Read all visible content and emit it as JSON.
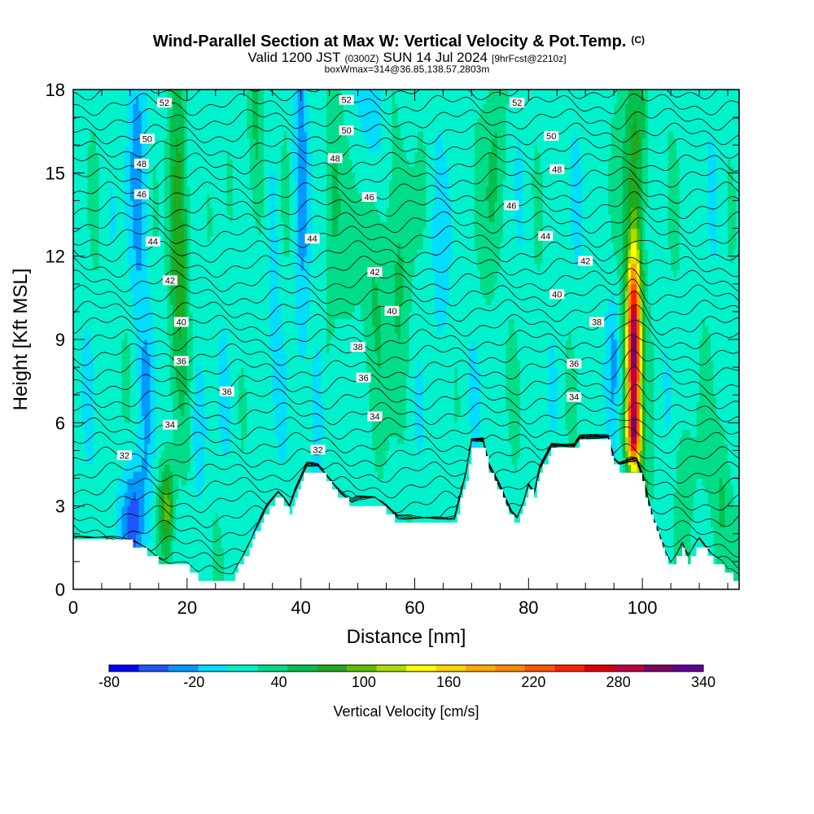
{
  "chart_data": {
    "type": "heatmap",
    "title": "Wind-Parallel Section at Max W: Vertical Velocity & Pot.Temp.",
    "title_mark": "(C)",
    "subtitle_parts": [
      "Valid 1200 JST",
      "(0300Z)",
      "SUN 14 Jul 2024",
      "[9hrFcst@2210z]"
    ],
    "subtitle2": "boxWmax=314@36.85,138.57,2803m",
    "xlabel": "Distance [nm]",
    "ylabel": "Height [Kft MSL]",
    "xlim": [
      0,
      117
    ],
    "ylim": [
      0,
      18
    ],
    "x_ticks": [
      0,
      20,
      40,
      60,
      80,
      100
    ],
    "x_tick_labels": [
      "0",
      "20",
      "40",
      "60",
      "80",
      "100"
    ],
    "y_ticks": [
      0,
      3,
      6,
      9,
      12,
      15,
      18
    ],
    "y_tick_labels": [
      "0",
      "3",
      "6",
      "9",
      "12",
      "15",
      "18"
    ],
    "colorbar": {
      "label": "Vertical Velocity [cm/s]",
      "tick_values": [
        -80,
        -20,
        40,
        100,
        160,
        220,
        280,
        340
      ],
      "tick_labels": [
        "-80",
        "-20",
        "40",
        "100",
        "160",
        "220",
        "280",
        "340"
      ],
      "colors": [
        "#0000ff",
        "#1f55ff",
        "#0099ff",
        "#00ddff",
        "#00f2cc",
        "#00dd88",
        "#00c050",
        "#1faa1f",
        "#5cc000",
        "#aadd00",
        "#ffff00",
        "#ffd700",
        "#ffaa00",
        "#ff8800",
        "#ff5500",
        "#ff2200",
        "#e00000",
        "#bb0044",
        "#800066",
        "#600099"
      ]
    },
    "terrain": [
      [
        0,
        1.65
      ],
      [
        10,
        1.65
      ],
      [
        13,
        1.3
      ],
      [
        15,
        1.0
      ],
      [
        17,
        0.75
      ],
      [
        20,
        0.75
      ],
      [
        22,
        0.4
      ],
      [
        28,
        0.4
      ],
      [
        30,
        1.1
      ],
      [
        32,
        2.0
      ],
      [
        34,
        2.8
      ],
      [
        36,
        3.3
      ],
      [
        37,
        3.1
      ],
      [
        38,
        2.8
      ],
      [
        39,
        3.4
      ],
      [
        41,
        4.3
      ],
      [
        43,
        4.3
      ],
      [
        45,
        3.8
      ],
      [
        47,
        3.3
      ],
      [
        49,
        3.0
      ],
      [
        50,
        3.1
      ],
      [
        53,
        3.1
      ],
      [
        55,
        2.8
      ],
      [
        57,
        2.4
      ],
      [
        62,
        2.4
      ],
      [
        66,
        2.4
      ],
      [
        67,
        2.4
      ],
      [
        69,
        4.0
      ],
      [
        70,
        5.2
      ],
      [
        72,
        5.2
      ],
      [
        73,
        4.3
      ],
      [
        75,
        3.5
      ],
      [
        76,
        3.0
      ],
      [
        77,
        2.6
      ],
      [
        78,
        2.4
      ],
      [
        79,
        2.9
      ],
      [
        80,
        3.6
      ],
      [
        81,
        3.3
      ],
      [
        82,
        4.2
      ],
      [
        84,
        5.0
      ],
      [
        88,
        5.0
      ],
      [
        89,
        5.3
      ],
      [
        94,
        5.3
      ],
      [
        95,
        4.5
      ],
      [
        96,
        4.3
      ],
      [
        99,
        4.3
      ],
      [
        100,
        3.8
      ],
      [
        101,
        3.0
      ],
      [
        102,
        2.3
      ],
      [
        103,
        1.8
      ],
      [
        104,
        1.2
      ],
      [
        105,
        0.8
      ],
      [
        106,
        1.1
      ],
      [
        107,
        1.5
      ],
      [
        108,
        1.0
      ],
      [
        110,
        1.6
      ],
      [
        112,
        1.1
      ],
      [
        114,
        0.8
      ],
      [
        115,
        0.5
      ],
      [
        116,
        0.4
      ],
      [
        117,
        0.35
      ]
    ],
    "contour_labels": [
      {
        "x": 16,
        "y": 17.5,
        "text": "52"
      },
      {
        "x": 48,
        "y": 17.6,
        "text": "52"
      },
      {
        "x": 78,
        "y": 17.5,
        "text": "52"
      },
      {
        "x": 13,
        "y": 16.2,
        "text": "50"
      },
      {
        "x": 48,
        "y": 16.5,
        "text": "50"
      },
      {
        "x": 84,
        "y": 16.3,
        "text": "50"
      },
      {
        "x": 12,
        "y": 15.3,
        "text": "48"
      },
      {
        "x": 46,
        "y": 15.5,
        "text": "48"
      },
      {
        "x": 85,
        "y": 15.1,
        "text": "48"
      },
      {
        "x": 12,
        "y": 14.2,
        "text": "46"
      },
      {
        "x": 52,
        "y": 14.1,
        "text": "46"
      },
      {
        "x": 77,
        "y": 13.8,
        "text": "46"
      },
      {
        "x": 14,
        "y": 12.5,
        "text": "44"
      },
      {
        "x": 42,
        "y": 12.6,
        "text": "44"
      },
      {
        "x": 83,
        "y": 12.7,
        "text": "44"
      },
      {
        "x": 17,
        "y": 11.1,
        "text": "42"
      },
      {
        "x": 53,
        "y": 11.4,
        "text": "42"
      },
      {
        "x": 90,
        "y": 11.8,
        "text": "42"
      },
      {
        "x": 19,
        "y": 9.6,
        "text": "40"
      },
      {
        "x": 56,
        "y": 10.0,
        "text": "40"
      },
      {
        "x": 85,
        "y": 10.6,
        "text": "40"
      },
      {
        "x": 19,
        "y": 8.2,
        "text": "36"
      },
      {
        "x": 50,
        "y": 8.7,
        "text": "38"
      },
      {
        "x": 92,
        "y": 9.6,
        "text": "38"
      },
      {
        "x": 27,
        "y": 7.1,
        "text": "36"
      },
      {
        "x": 51,
        "y": 7.6,
        "text": "36"
      },
      {
        "x": 88,
        "y": 8.1,
        "text": "36"
      },
      {
        "x": 17,
        "y": 5.9,
        "text": "34"
      },
      {
        "x": 53,
        "y": 6.2,
        "text": "34"
      },
      {
        "x": 88,
        "y": 6.9,
        "text": "34"
      },
      {
        "x": 9,
        "y": 4.8,
        "text": "32"
      },
      {
        "x": 43,
        "y": 5.0,
        "text": "32"
      }
    ],
    "w_features": [
      {
        "x": 11.5,
        "y": 15,
        "sx": 1.2,
        "sy": 3.5,
        "value": -40
      },
      {
        "x": 10.5,
        "y": 2.5,
        "sx": 1.3,
        "sy": 1.5,
        "value": -70
      },
      {
        "x": 13,
        "y": 7,
        "sx": 1.0,
        "sy": 3.0,
        "value": -25
      },
      {
        "x": 18.5,
        "y": 13,
        "sx": 1.3,
        "sy": 4.0,
        "value": 70
      },
      {
        "x": 16.5,
        "y": 3,
        "sx": 0.9,
        "sy": 1.2,
        "value": 80
      },
      {
        "x": 22,
        "y": 6,
        "sx": 0.8,
        "sy": 1.5,
        "value": -30
      },
      {
        "x": 32,
        "y": 16,
        "sx": 1.2,
        "sy": 2.5,
        "value": 35
      },
      {
        "x": 35,
        "y": 12,
        "sx": 0.8,
        "sy": 3.0,
        "value": -20
      },
      {
        "x": 40,
        "y": 15,
        "sx": 1.0,
        "sy": 4.0,
        "value": -40
      },
      {
        "x": 43,
        "y": 6.5,
        "sx": 0.8,
        "sy": 2.0,
        "value": -45
      },
      {
        "x": 45.5,
        "y": 14,
        "sx": 1.0,
        "sy": 3.5,
        "value": 35
      },
      {
        "x": 52,
        "y": 17,
        "sx": 1.5,
        "sy": 2.0,
        "value": -30
      },
      {
        "x": 54,
        "y": 12,
        "sx": 4.0,
        "sy": 3.0,
        "value": 30
      },
      {
        "x": 57,
        "y": 8,
        "sx": 2.0,
        "sy": 2.5,
        "value": 15
      },
      {
        "x": 64,
        "y": 11,
        "sx": 2.0,
        "sy": 3.0,
        "value": -15
      },
      {
        "x": 74,
        "y": 15,
        "sx": 1.2,
        "sy": 3.0,
        "value": 40
      },
      {
        "x": 98.5,
        "y": 16,
        "sx": 1.5,
        "sy": 2.5,
        "value": 60
      },
      {
        "x": 98.5,
        "y": 8.8,
        "sx": 0.9,
        "sy": 2.6,
        "value": 300
      },
      {
        "x": 98.5,
        "y": 5.6,
        "sx": 0.9,
        "sy": 0.8,
        "value": 150
      },
      {
        "x": 95,
        "y": 8.5,
        "sx": 0.6,
        "sy": 1.5,
        "value": -30
      },
      {
        "x": 100,
        "y": 3,
        "sx": 0.8,
        "sy": 1.2,
        "value": 60
      },
      {
        "x": 108,
        "y": 4,
        "sx": 2.0,
        "sy": 2.0,
        "value": 20
      },
      {
        "x": 114,
        "y": 3,
        "sx": 1.0,
        "sy": 2.0,
        "value": 40
      }
    ]
  }
}
